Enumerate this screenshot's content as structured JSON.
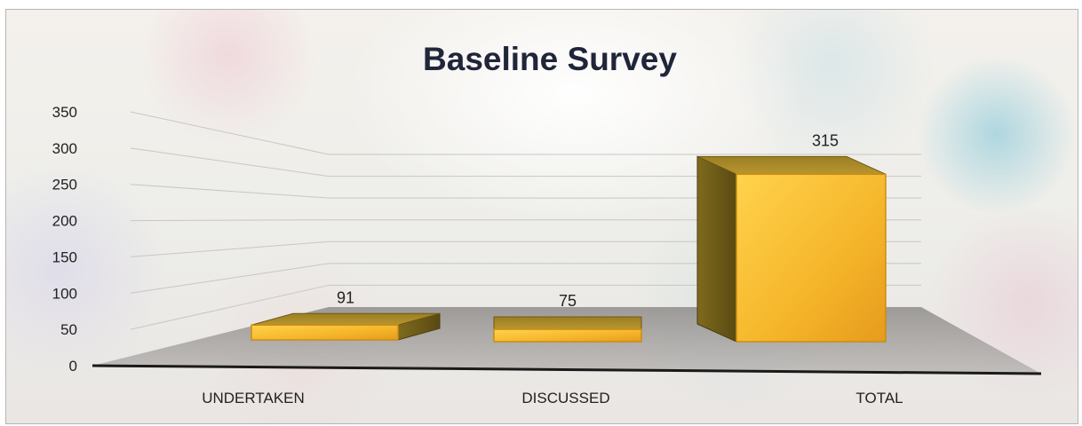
{
  "chart_data": {
    "type": "bar",
    "title": "Baseline Survey",
    "categories": [
      "UNDERTAKEN",
      "DISCUSSED",
      "TOTAL"
    ],
    "values": [
      91,
      75,
      315
    ],
    "data_labels": [
      "91",
      "75",
      "315"
    ],
    "ylim": [
      0,
      350
    ],
    "yticks": [
      "0",
      "50",
      "100",
      "150",
      "200",
      "250",
      "300",
      "350"
    ],
    "xlabel": "",
    "ylabel": "",
    "grid": true,
    "legend": "none",
    "style": "3d-column",
    "bar_color": "#f2b632"
  }
}
